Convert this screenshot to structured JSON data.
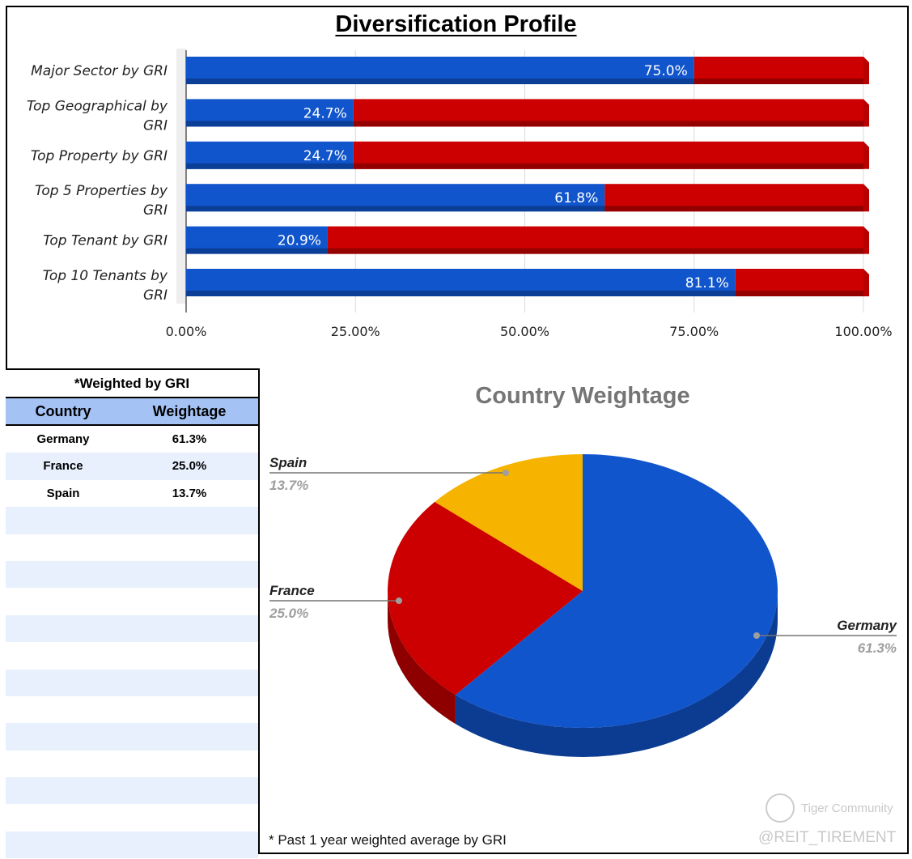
{
  "title": "Diversification Profile",
  "chart_data": [
    {
      "type": "bar",
      "orientation": "horizontal",
      "stacked": true,
      "categories": [
        "Major Sector by GRI",
        "Top Geographical by GRI",
        "Top Property by GRI",
        "Top 5 Properties by GRI",
        "Top Tenant by GRI",
        "Top 10 Tenants by GRI"
      ],
      "series": [
        {
          "name": "Share",
          "values": [
            75.0,
            24.7,
            24.7,
            61.8,
            20.9,
            81.1
          ],
          "color": "#1155cc"
        },
        {
          "name": "Remainder",
          "values": [
            25.0,
            75.3,
            75.3,
            38.2,
            79.1,
            18.9
          ],
          "color": "#cc0000"
        }
      ],
      "data_labels": [
        "75.0%",
        "24.7%",
        "24.7%",
        "61.8%",
        "20.9%",
        "81.1%"
      ],
      "xticks": [
        "0.00%",
        "25.00%",
        "50.00%",
        "75.00%",
        "100.00%"
      ],
      "xlim": [
        0,
        100
      ],
      "title": "Diversification Profile"
    },
    {
      "type": "pie",
      "title": "Country Weightage",
      "labels": [
        "Germany",
        "France",
        "Spain"
      ],
      "values": [
        61.3,
        25.0,
        13.7
      ],
      "display": [
        "61.3%",
        "25.0%",
        "13.7%"
      ],
      "colors": [
        "#1155cc",
        "#cc0000",
        "#f6b400"
      ]
    }
  ],
  "table": {
    "title": "*Weighted by GRI",
    "headers": [
      "Country",
      "Weightage"
    ],
    "rows": [
      [
        "Germany",
        "61.3%"
      ],
      [
        "France",
        "25.0%"
      ],
      [
        "Spain",
        "13.7%"
      ]
    ]
  },
  "footnote": "* Past 1 year weighted average by GRI",
  "watermark": {
    "brand": "Tiger Community",
    "handle": "@REIT_TIREMENT"
  }
}
